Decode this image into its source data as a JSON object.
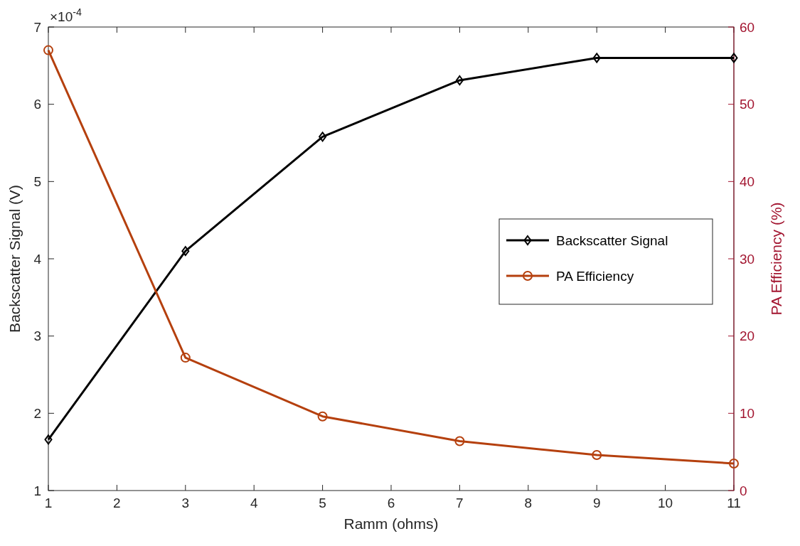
{
  "chart_data": {
    "type": "line",
    "xlabel": "Ramm (ohms)",
    "ylabel": "Backscatter Signal (V)",
    "y2label": "PA Efficiency (%)",
    "x": [
      1,
      3,
      5,
      7,
      9,
      11
    ],
    "series": [
      {
        "name": "Backscatter Signal",
        "color": "#000000",
        "marker": "diamond",
        "values": [
          1.66,
          4.1,
          5.58,
          6.31,
          6.6,
          6.6
        ]
      },
      {
        "name": "PA Efficiency",
        "color": "#b5400e",
        "marker": "circle",
        "axis": "y2",
        "values": [
          57,
          17.2,
          9.6,
          6.4,
          4.6,
          3.5
        ]
      }
    ],
    "xlim": [
      1,
      11
    ],
    "xticks": [
      1,
      2,
      3,
      4,
      5,
      6,
      7,
      8,
      9,
      10,
      11
    ],
    "ylim": [
      1,
      7
    ],
    "yticks": [
      1,
      2,
      3,
      4,
      5,
      6,
      7
    ],
    "annotations": [
      "×10$^{-4}$"
    ],
    "y2lim": [
      0,
      60
    ],
    "y2ticks": [
      0,
      10,
      20,
      30,
      40,
      50,
      60
    ],
    "legend": "right",
    "grid": false
  }
}
